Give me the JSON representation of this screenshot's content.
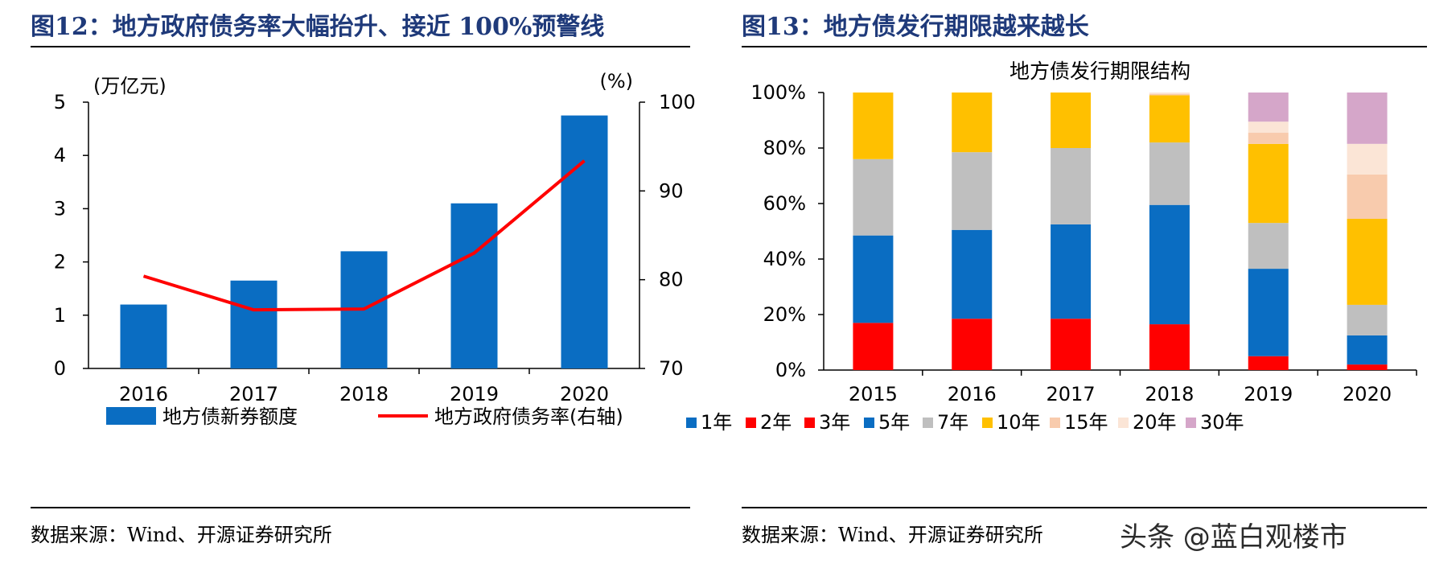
{
  "figures": {
    "left": {
      "title": "图12：地方政府债务率大幅抬升、接近 100%预警线",
      "source": "数据来源：Wind、开源证券研究所"
    },
    "right": {
      "title": "图13：地方债发行期限越来越长",
      "source": "数据来源：Wind、开源证券研究所"
    }
  },
  "watermark": "头条 @蓝白观楼市",
  "colors": {
    "title": "#1f3a7a",
    "bar": "#0a6dc2",
    "line": "#ff0000"
  },
  "chart_data": [
    {
      "type": "bar",
      "title": "",
      "categories": [
        "2016",
        "2017",
        "2018",
        "2019",
        "2020"
      ],
      "series": [
        {
          "name": "地方债新券额度",
          "type": "bar",
          "axis": "left",
          "color": "#0a6dc2",
          "values": [
            1.2,
            1.65,
            2.2,
            3.1,
            4.75
          ]
        },
        {
          "name": "地方政府债务率(右轴)",
          "type": "line",
          "axis": "right",
          "color": "#ff0000",
          "values": [
            80.4,
            76.6,
            76.7,
            83.0,
            93.4
          ]
        }
      ],
      "ylabel": "(万亿元)",
      "ylim": [
        0,
        5
      ],
      "yticks": [
        "0",
        "1",
        "2",
        "3",
        "4",
        "5"
      ],
      "y2label": "(%)",
      "y2lim": [
        70,
        100
      ],
      "y2ticks": [
        "70",
        "80",
        "90",
        "100"
      ],
      "grid": false,
      "legend": "bottom"
    },
    {
      "type": "bar",
      "stacked": true,
      "title": "地方债发行期限结构",
      "categories": [
        "2015",
        "2016",
        "2017",
        "2018",
        "2019",
        "2020"
      ],
      "series": [
        {
          "name": "1年",
          "color": "#0a6dc2",
          "values": [
            0,
            0,
            0,
            0,
            0,
            0
          ]
        },
        {
          "name": "2年",
          "color": "#ff0000",
          "values": [
            0,
            0,
            0,
            0,
            0,
            0
          ]
        },
        {
          "name": "3年",
          "color": "#ff0000",
          "values": [
            17,
            18.5,
            18.5,
            16.5,
            5,
            2
          ]
        },
        {
          "name": "5年",
          "color": "#0a6dc2",
          "values": [
            31.5,
            32,
            34,
            43,
            31.5,
            10.5
          ]
        },
        {
          "name": "7年",
          "color": "#bfbfbf",
          "values": [
            27.5,
            28,
            27.5,
            22.5,
            16.5,
            11
          ]
        },
        {
          "name": "10年",
          "color": "#ffc000",
          "values": [
            24,
            21.5,
            20,
            17,
            28.5,
            31
          ]
        },
        {
          "name": "15年",
          "color": "#f8cbad",
          "values": [
            0,
            0,
            0,
            0.5,
            4,
            16
          ]
        },
        {
          "name": "20年",
          "color": "#fbe5d6",
          "values": [
            0,
            0,
            0,
            0.5,
            4,
            11
          ]
        },
        {
          "name": "30年",
          "color": "#d5a6c9",
          "values": [
            0,
            0,
            0,
            0,
            10.5,
            18.5
          ]
        }
      ],
      "ylim": [
        0,
        100
      ],
      "yticks": [
        "0%",
        "20%",
        "40%",
        "60%",
        "80%",
        "100%"
      ],
      "grid": false,
      "legend": "bottom"
    }
  ]
}
